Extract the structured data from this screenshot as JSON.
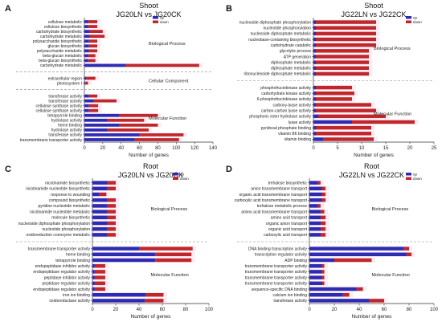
{
  "colors": {
    "up": "#2b2bb4",
    "down": "#c0272d",
    "band": "#fbe0ea",
    "axis": "#333333",
    "dash": "#888888"
  },
  "chart_data": [
    {
      "panel": "A",
      "type": "bar",
      "stacked": true,
      "title1": "Shoot",
      "title2": "JG20LN vs JG20CK",
      "xlabel": "Number of genes",
      "xlim": [
        0,
        140
      ],
      "xticks": [
        0,
        20,
        40,
        60,
        80,
        100,
        120,
        140
      ],
      "legend": [
        "up",
        "down"
      ],
      "groups": [
        {
          "label": "Biological Process",
          "categories": [
            "cellulose metabolic",
            "cellulose biosynthetic",
            "carbohydrate biosynthetic",
            "carbohydrate metabolic",
            "polysaccharide biosynthetic",
            "glucan biosynthetic",
            "polysaccharide metabolic",
            "beta-glucan metabolic",
            "beta-glucan biosynthetic",
            "carbohydrate metabolic"
          ],
          "up": [
            4,
            4,
            6,
            6,
            5,
            5,
            5,
            4,
            4,
            45
          ],
          "down": [
            10,
            10,
            14,
            16,
            9,
            9,
            9,
            8,
            8,
            80
          ]
        },
        {
          "label": "Cellular Component",
          "categories": [
            "extracellular region",
            "photosystem I"
          ],
          "up": [
            2,
            1
          ],
          "down": [
            10,
            3
          ]
        },
        {
          "label": "Molecular Function",
          "categories": [
            "transferase activity",
            "transferase activity",
            "cellulose synthase activity",
            "cellulose synthase activity",
            "tetrapyrrole binding",
            "hydrolase activity",
            "heme binding",
            "hydrolase activity",
            "transferase activity",
            "transmembrane transporter activity"
          ],
          "up": [
            5,
            10,
            5,
            5,
            38,
            25,
            38,
            25,
            60,
            55
          ],
          "down": [
            9,
            25,
            10,
            10,
            42,
            40,
            42,
            45,
            48,
            48
          ]
        }
      ]
    },
    {
      "panel": "B",
      "type": "bar",
      "stacked": true,
      "title1": "Shoot",
      "title2": "JG22LN vs JG22CK",
      "xlabel": "Number of genes",
      "xlim": [
        0,
        25
      ],
      "xticks": [
        0,
        5,
        10,
        15,
        20,
        25
      ],
      "legend": [
        "up",
        "down"
      ],
      "groups": [
        {
          "label": "Biological Process",
          "categories": [
            "nucleoside diphosphate phosphorylation",
            "nucleotide phosphorylation",
            "nucleoside diphosphate metabolic",
            "nucleobase-containing biosynthetic",
            "carbohydrate catabolic",
            "glycolytic process",
            "ATP generation",
            "diphosphate metabolic",
            "diphosphate metabolic",
            "ribonucleoside diphosphate metabolic"
          ],
          "up": [
            0.5,
            0.5,
            0.5,
            0.5,
            0.5,
            0.5,
            0.5,
            0.5,
            0.5,
            0.5
          ],
          "down": [
            12.5,
            12.5,
            12.5,
            12.5,
            12.5,
            11,
            11,
            11,
            11,
            11
          ]
        },
        {
          "label": "Molecular Function",
          "categories": [
            "phosphofructokinase activity",
            "carbohydrate kinase activity",
            "6-phosphofructokinase activity",
            "carboxy-lyase activity",
            "carbon-carbon lyase activity",
            "phosphoric ester hydrolase activity",
            "lyase activity",
            "pyridoxal phosphate binding",
            "vitamin B6 binding",
            "vitamin binding"
          ],
          "up": [
            0.5,
            0.5,
            0.5,
            0.5,
            0.5,
            1,
            8,
            0.5,
            0.5,
            2
          ],
          "down": [
            7.5,
            8,
            7.5,
            11.5,
            12.5,
            14,
            13,
            11.5,
            11.5,
            10.5
          ]
        }
      ]
    },
    {
      "panel": "C",
      "type": "bar",
      "stacked": true,
      "title1": "Root",
      "title2": "JG20LN vs JG20CK",
      "xlabel": "Number of genes",
      "xlim": [
        0,
        100
      ],
      "xticks": [
        0,
        20,
        40,
        60,
        80,
        100
      ],
      "legend": [
        "up",
        "down"
      ],
      "groups": [
        {
          "label": "Biological Process",
          "categories": [
            "nicotinamide biosynthetic",
            "nicotinamide nucleotide biosynthetic",
            "response to wounding",
            "compound biosynthetic",
            "pyridine nucleotide metabolic",
            "nicotinamide nucleotide metabolic",
            "molecule biosynthetic",
            "nucleoside diphosphate phosphorylation",
            "nucleotide phosphorylation",
            "oxidoreduction coenzyme metabolic"
          ],
          "up": [
            13,
            13,
            6,
            13,
            13,
            13,
            13,
            13,
            13,
            13
          ],
          "down": [
            7,
            7,
            6,
            7,
            7,
            7,
            7,
            7,
            7,
            7
          ]
        },
        {
          "label": "Molecular Function",
          "categories": [
            "transmembrane transporter activity",
            "heme binding",
            "tetrapyrrole binding",
            "endopeptidase inhibitor activity",
            "endopeptidase regulator activity",
            "peptidase inhibitor activity",
            "peptidase regulator activity",
            "endopeptidase regulator activity",
            "iron ion binding",
            "oxidoreductase activity"
          ],
          "up": [
            40,
            54,
            54,
            2,
            2,
            2,
            2,
            2,
            46,
            45
          ],
          "down": [
            46,
            31,
            31,
            9,
            9,
            9,
            9,
            9,
            15,
            16
          ]
        }
      ]
    },
    {
      "panel": "D",
      "type": "bar",
      "stacked": true,
      "title1": "Root",
      "title2": "JG22LN vs JG22CK",
      "xlabel": "Number of genes",
      "xlim": [
        0,
        100
      ],
      "xticks": [
        0,
        20,
        40,
        60,
        80,
        100
      ],
      "legend": [
        "up",
        "down"
      ],
      "groups": [
        {
          "label": "Biological Process",
          "categories": [
            "trehalose biosynthetic",
            "anion transmembrane transport",
            "organic acid transmembrane transport",
            "carboxylic acid transmembrane transport",
            "trehalose metabolic process",
            "amino acid transmembrane transport",
            "amino acid transport",
            "organic anion transport",
            "organic acid transport",
            "carboxylic acid transport"
          ],
          "up": [
            7,
            10,
            10,
            10,
            7,
            9,
            9,
            9,
            9,
            9
          ],
          "down": [
            2,
            3,
            3,
            3,
            2,
            3,
            4,
            4,
            4,
            4
          ]
        },
        {
          "label": "Molecular Function",
          "categories": [
            "DNA binding transcription activity",
            "transcription regulator activity",
            "ADP binding",
            "transmembrane transporter activity",
            "transmembrane transporter activity",
            "transmembrane transporter activity",
            "transmembrane transporter activity",
            "sequence-specific DNA binding",
            "calcium ion binding",
            "transferase activity"
          ],
          "up": [
            76,
            78,
            20,
            10,
            10,
            10,
            10,
            38,
            27,
            48
          ],
          "down": [
            4,
            4,
            30,
            2,
            2,
            2,
            2,
            5,
            5,
            12
          ]
        }
      ]
    }
  ]
}
